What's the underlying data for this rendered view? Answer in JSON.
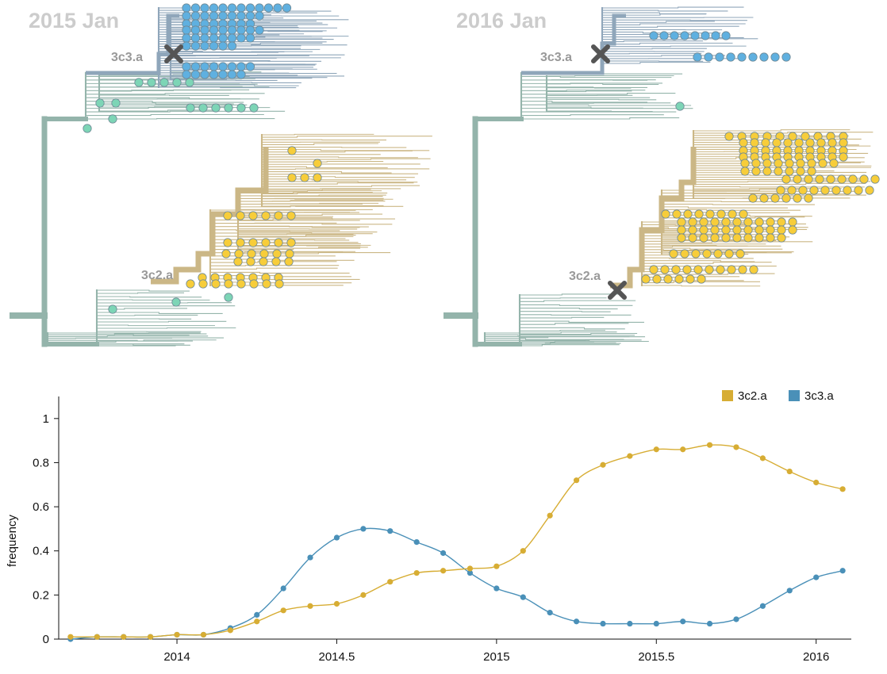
{
  "colors": {
    "trunk": "#94b4ab",
    "branch_3c2a": "#cbb786",
    "branch_3c3a": "#8fa6ba",
    "tip_3c2a": "#f7cd3a",
    "tip_3c3a": "#5fb0e0",
    "tip_other": "#7dd5b6",
    "series_3c2a": "#d7ad34",
    "series_3c3a": "#4a90b8",
    "marker": "#555555"
  },
  "trees": [
    {
      "title": "2015 Jan",
      "labels": {
        "top": "3c3.a",
        "bottom": "3c2.a"
      }
    },
    {
      "title": "2016 Jan",
      "labels": {
        "top": "3c3.a",
        "bottom": "3c2.a"
      }
    }
  ],
  "chart_data": {
    "type": "line",
    "ylabel": "frequency",
    "xlabel": "",
    "xlim": [
      2013.63,
      2016.11
    ],
    "ylim": [
      0,
      1.1
    ],
    "xticks": [
      2014,
      2014.5,
      2015,
      2015.5,
      2016
    ],
    "xtick_labels": [
      "2014",
      "2014.5",
      "2015",
      "2015.5",
      "2016"
    ],
    "yticks": [
      0,
      0.2,
      0.4,
      0.6,
      0.8,
      1
    ],
    "ytick_labels": [
      "0",
      "0.2",
      "0.4",
      "0.6",
      "0.8",
      "1"
    ],
    "legend_position": "top-right",
    "x": [
      2013.667,
      2013.75,
      2013.833,
      2013.917,
      2014.0,
      2014.083,
      2014.167,
      2014.25,
      2014.333,
      2014.417,
      2014.5,
      2014.583,
      2014.667,
      2014.75,
      2014.833,
      2014.917,
      2015.0,
      2015.083,
      2015.167,
      2015.25,
      2015.333,
      2015.417,
      2015.5,
      2015.583,
      2015.667,
      2015.75,
      2015.833,
      2015.917,
      2016.0,
      2016.083
    ],
    "series": [
      {
        "name": "3c2.a",
        "color": "#d7ad34",
        "values": [
          0.01,
          0.01,
          0.01,
          0.01,
          0.02,
          0.02,
          0.04,
          0.08,
          0.13,
          0.15,
          0.16,
          0.2,
          0.26,
          0.3,
          0.31,
          0.32,
          0.33,
          0.4,
          0.56,
          0.72,
          0.79,
          0.83,
          0.86,
          0.86,
          0.88,
          0.87,
          0.82,
          0.76,
          0.71,
          0.68
        ]
      },
      {
        "name": "3c3.a",
        "color": "#4a90b8",
        "values": [
          0.0,
          0.01,
          0.01,
          0.01,
          0.02,
          0.02,
          0.05,
          0.11,
          0.23,
          0.37,
          0.46,
          0.5,
          0.49,
          0.44,
          0.39,
          0.3,
          0.23,
          0.19,
          0.12,
          0.08,
          0.07,
          0.07,
          0.07,
          0.08,
          0.07,
          0.09,
          0.15,
          0.22,
          0.28,
          0.31
        ]
      }
    ]
  }
}
